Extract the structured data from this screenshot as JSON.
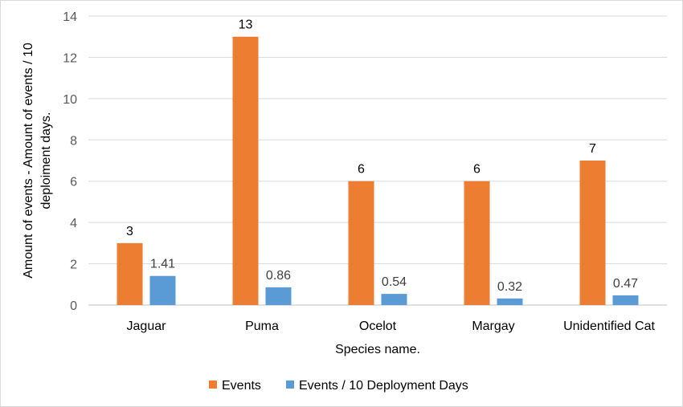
{
  "chart_data": {
    "type": "bar",
    "title": "",
    "xlabel": "Species name.",
    "ylabel_lines": [
      "Amount of events - Amount of events / 10",
      "deploiment days."
    ],
    "ylim": [
      0,
      14
    ],
    "yticks": [
      "0",
      "2",
      "4",
      "6",
      "8",
      "10",
      "12",
      "14"
    ],
    "grid": true,
    "legend_position": "bottom",
    "categories": [
      "Jaguar",
      "Puma",
      "Ocelot",
      "Margay",
      "Unidentified Cat"
    ],
    "series": [
      {
        "name": "Events",
        "color": "#ED7D31",
        "values": [
          3,
          13,
          6,
          6,
          7
        ],
        "labels": [
          "3",
          "13",
          "6",
          "6",
          "7"
        ]
      },
      {
        "name": "Events / 10 Deployment Days",
        "color": "#5B9BD5",
        "values": [
          1.41,
          0.86,
          0.54,
          0.32,
          0.47
        ],
        "labels": [
          "1.41",
          "0.86",
          "0.54",
          "0.32",
          "0.47"
        ]
      }
    ]
  }
}
